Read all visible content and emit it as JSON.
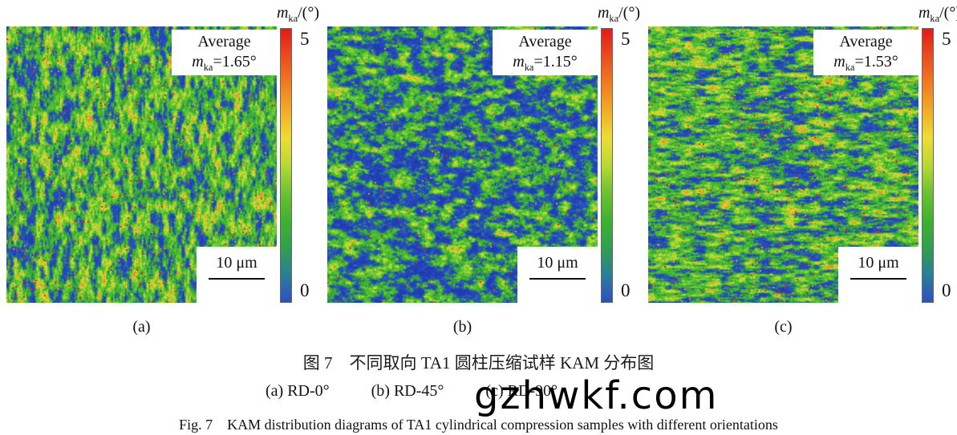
{
  "figure": {
    "colorbar": {
      "title_main": "m",
      "title_sub": "ka",
      "title_unit": "/(°)",
      "max_label": "5",
      "min_label": "0",
      "gradient": [
        "#e51a1a",
        "#ec4c1d",
        "#f07c1f",
        "#f2ac26",
        "#eedd35",
        "#b8d834",
        "#6cc231",
        "#3fb22d",
        "#30a04e",
        "#2a7f95",
        "#2c4fc4"
      ]
    },
    "map_colormap": [
      [
        0.0,
        "#1e3cae"
      ],
      [
        0.3,
        "#2a50c8"
      ],
      [
        0.37,
        "#2c7e62"
      ],
      [
        0.43,
        "#35a33c"
      ],
      [
        0.52,
        "#3eb42c"
      ],
      [
        0.62,
        "#50c133"
      ],
      [
        0.72,
        "#78ca35"
      ],
      [
        0.81,
        "#b5d633"
      ],
      [
        0.89,
        "#e2e22f"
      ],
      [
        1.0,
        "#ee8a22"
      ]
    ],
    "speck_colors": {
      "red": "#df261a",
      "orange": "#ee9628"
    },
    "panels": [
      {
        "label": "(a)",
        "avg_title": "Average",
        "avg_sym": "m",
        "avg_sub": "ka",
        "avg_value": "=1.65°",
        "scale_label": "10 μm",
        "texture": {
          "seed": 101,
          "orientation": "vertical",
          "bias": 0.02,
          "gain": 1.5,
          "red_density": 0.0035
        }
      },
      {
        "label": "(b)",
        "avg_title": "Average",
        "avg_sym": "m",
        "avg_sub": "ka",
        "avg_value": "=1.15°",
        "scale_label": "10 μm",
        "texture": {
          "seed": 202,
          "orientation": "diagonal",
          "bias": -0.09,
          "gain": 1.55,
          "red_density": 0.001
        }
      },
      {
        "label": "(c)",
        "avg_title": "Average",
        "avg_sym": "m",
        "avg_sub": "ka",
        "avg_value": "=1.53°",
        "scale_label": "10 μm",
        "texture": {
          "seed": 303,
          "orientation": "horizontal",
          "bias": 0.01,
          "gain": 1.5,
          "red_density": 0.0035
        }
      }
    ],
    "captions": {
      "cn": "图 7　不同取向 TA1 圆柱压缩试样 KAM 分布图",
      "sub_a": "(a) RD-0°",
      "sub_b": "(b) RD-45°",
      "sub_c": "(c) RD-90°",
      "en": "Fig. 7　KAM distribution diagrams of TA1 cylindrical compression samples with different orientations"
    },
    "watermark": "gzhwkf.com"
  }
}
